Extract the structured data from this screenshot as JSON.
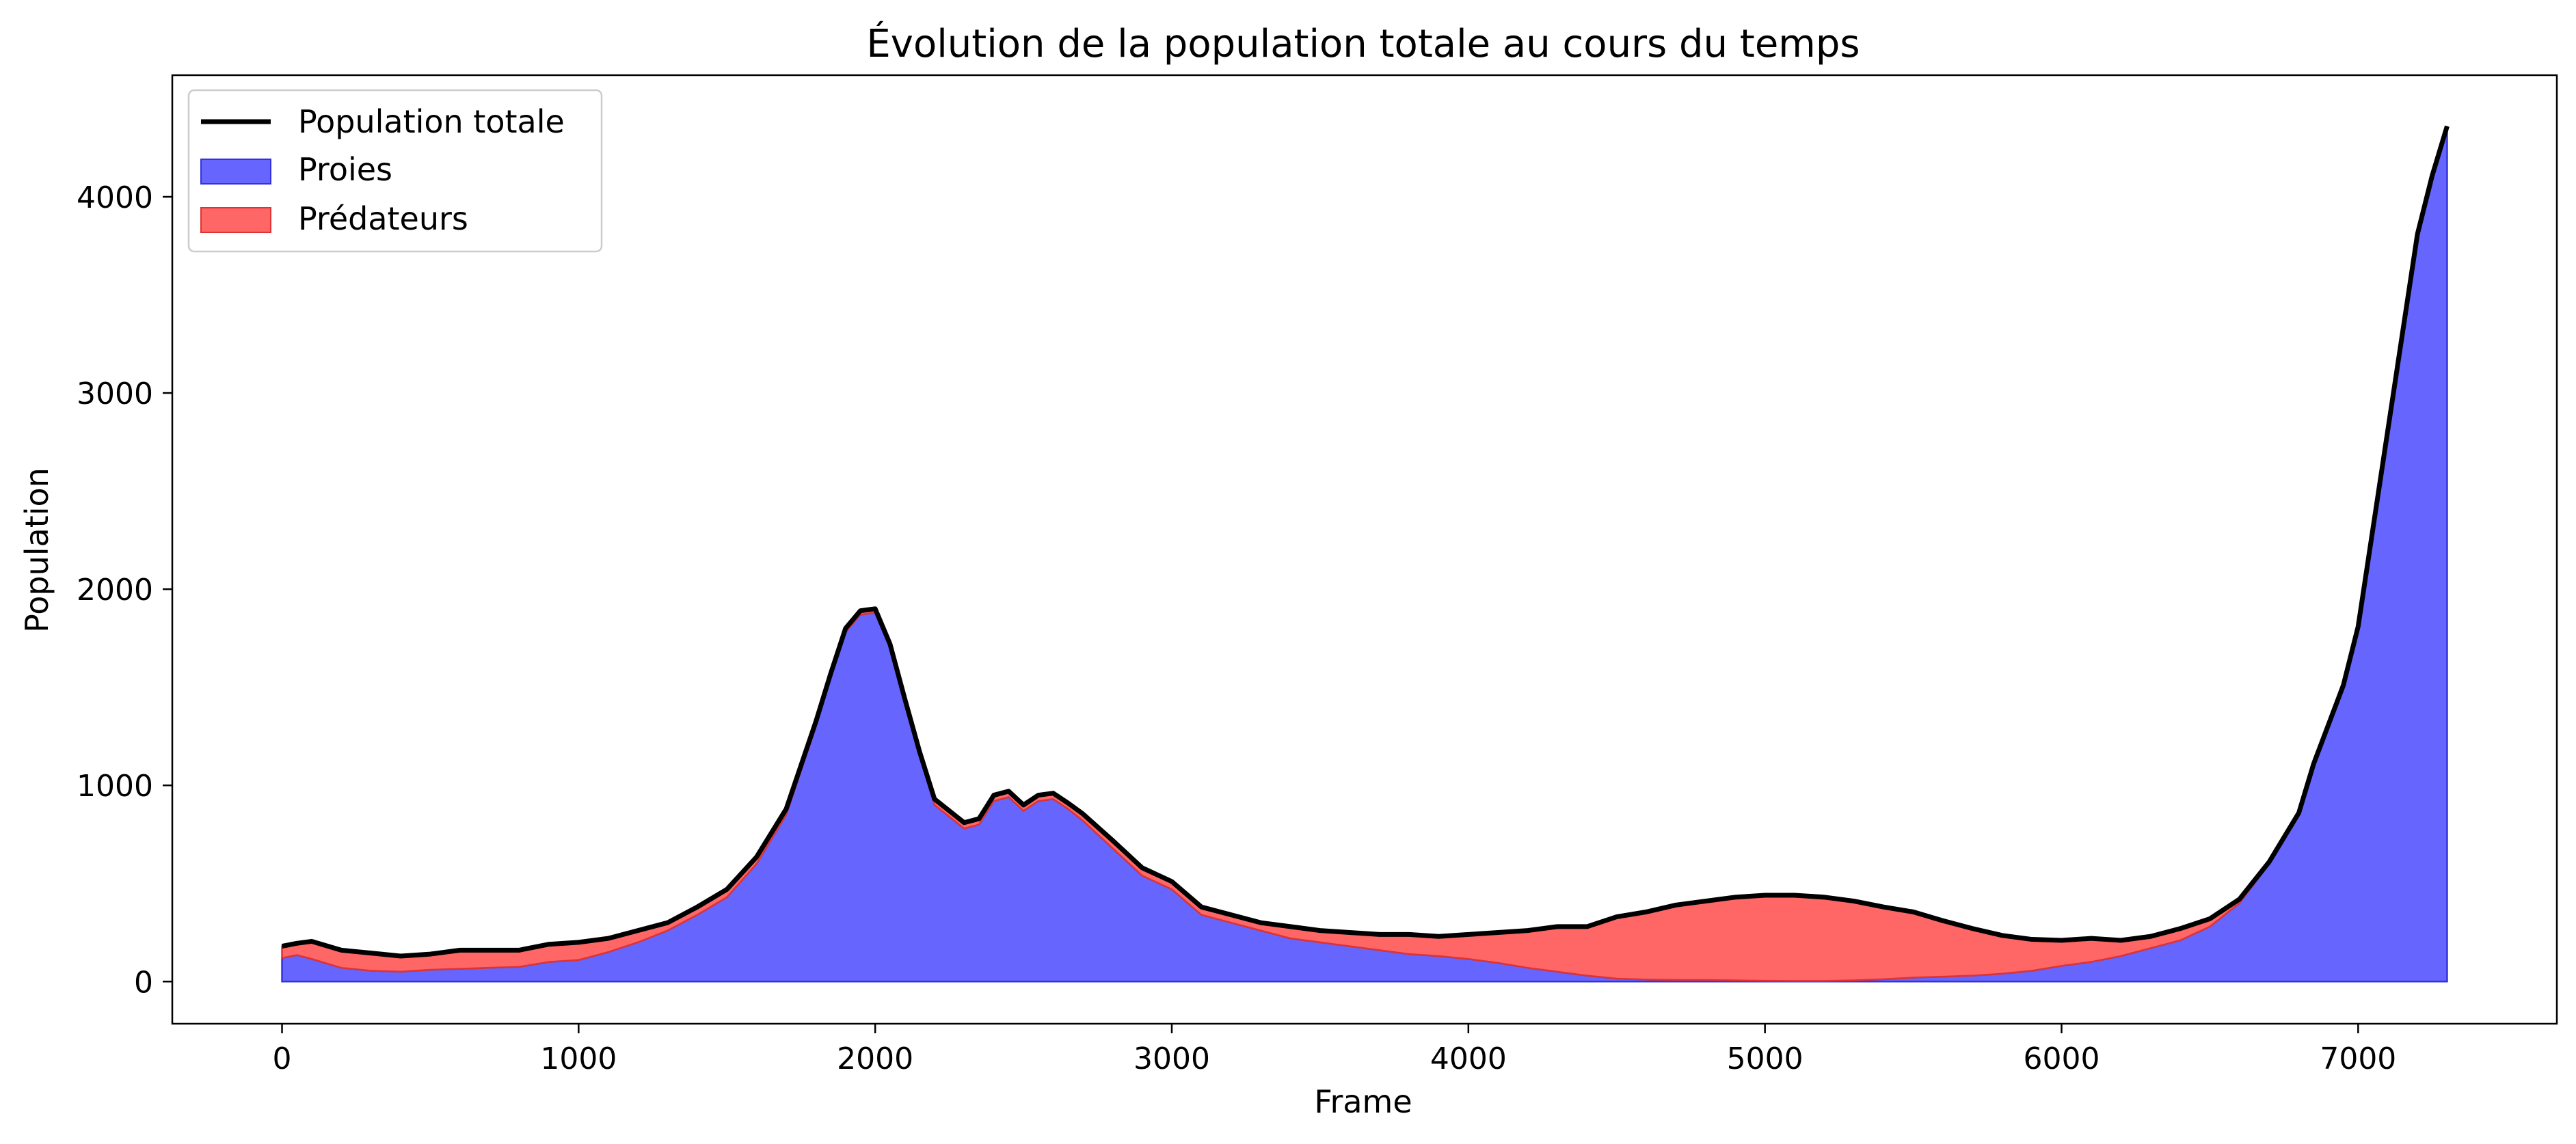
{
  "chart_data": {
    "type": "area",
    "title": "Évolution de la population totale au cours du temps",
    "xlabel": "Frame",
    "ylabel": "Population",
    "xlim": [
      -370,
      7670
    ],
    "ylim": [
      -215,
      4620
    ],
    "xticks": [
      0,
      1000,
      2000,
      3000,
      4000,
      5000,
      6000,
      7000
    ],
    "yticks": [
      0,
      1000,
      2000,
      3000,
      4000
    ],
    "grid": false,
    "legend_position": "top-left",
    "stacked": true,
    "x": [
      0,
      50,
      100,
      200,
      300,
      400,
      500,
      600,
      700,
      800,
      900,
      1000,
      1100,
      1200,
      1300,
      1400,
      1500,
      1600,
      1700,
      1800,
      1850,
      1900,
      1950,
      2000,
      2050,
      2100,
      2150,
      2200,
      2300,
      2350,
      2400,
      2450,
      2500,
      2550,
      2600,
      2650,
      2700,
      2800,
      2900,
      3000,
      3100,
      3200,
      3300,
      3400,
      3500,
      3600,
      3700,
      3800,
      3900,
      4000,
      4100,
      4200,
      4300,
      4400,
      4500,
      4600,
      4700,
      4800,
      4900,
      5000,
      5100,
      5200,
      5300,
      5400,
      5500,
      5600,
      5700,
      5800,
      5900,
      6000,
      6100,
      6200,
      6300,
      6400,
      6500,
      6600,
      6700,
      6800,
      6850,
      6900,
      6950,
      7000,
      7050,
      7100,
      7150,
      7200,
      7250,
      7300
    ],
    "series": [
      {
        "name": "Proies",
        "color": "#6666ff",
        "values": [
          120,
          135,
          115,
          70,
          55,
          50,
          60,
          65,
          70,
          75,
          100,
          110,
          150,
          200,
          260,
          340,
          430,
          600,
          850,
          1300,
          1550,
          1780,
          1870,
          1880,
          1700,
          1420,
          1150,
          900,
          780,
          800,
          920,
          940,
          870,
          920,
          930,
          880,
          820,
          680,
          540,
          470,
          340,
          300,
          260,
          220,
          200,
          180,
          160,
          140,
          130,
          115,
          95,
          70,
          50,
          30,
          15,
          10,
          8,
          8,
          6,
          4,
          3,
          3,
          6,
          12,
          20,
          25,
          30,
          40,
          55,
          80,
          100,
          130,
          170,
          210,
          280,
          400,
          600,
          850,
          1100,
          1300,
          1500,
          1800,
          2300,
          2800,
          3300,
          3800,
          4100,
          4350
        ]
      },
      {
        "name": "Prédateurs",
        "color": "#ff6666",
        "values": [
          60,
          60,
          90,
          90,
          90,
          80,
          80,
          95,
          90,
          85,
          90,
          90,
          70,
          60,
          40,
          40,
          40,
          35,
          30,
          25,
          20,
          20,
          20,
          20,
          20,
          20,
          20,
          30,
          30,
          30,
          30,
          30,
          30,
          30,
          30,
          30,
          35,
          40,
          40,
          40,
          40,
          40,
          40,
          60,
          60,
          70,
          80,
          100,
          100,
          125,
          155,
          190,
          230,
          250,
          315,
          345,
          382,
          402,
          424,
          436,
          437,
          427,
          404,
          368,
          335,
          285,
          240,
          195,
          160,
          130,
          120,
          80,
          60,
          60,
          40,
          20,
          10,
          10,
          10,
          10,
          10,
          10,
          10,
          10,
          10,
          10,
          10,
          10
        ]
      }
    ],
    "total": {
      "name": "Population totale",
      "color": "#000000"
    }
  }
}
